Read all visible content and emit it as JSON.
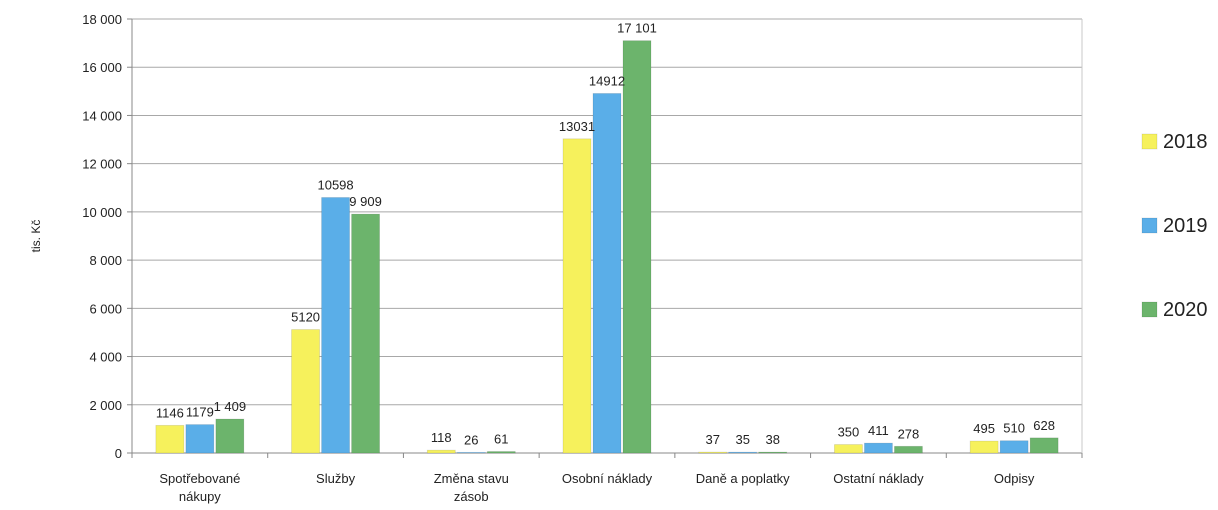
{
  "chart_data": {
    "type": "bar",
    "ylabel": "tis. Kč",
    "ylim": [
      0,
      18000
    ],
    "y_ticks": [
      0,
      2000,
      4000,
      6000,
      8000,
      10000,
      12000,
      14000,
      16000,
      18000
    ],
    "y_tick_labels": [
      "0",
      "2 000",
      "4 000",
      "6 000",
      "8 000",
      "10 000",
      "12 000",
      "14 000",
      "16 000",
      "18 000"
    ],
    "grid": true,
    "legend_position": "right",
    "categories": [
      [
        "Spotřebované",
        "nákupy"
      ],
      [
        "Služby"
      ],
      [
        "Změna stavu",
        "zásob"
      ],
      [
        "Osobní náklady"
      ],
      [
        "Daně a poplatky"
      ],
      [
        "Ostatní náklady"
      ],
      [
        "Odpisy"
      ]
    ],
    "series": [
      {
        "name": "2018",
        "color": "#f6f15c",
        "values": [
          1146,
          5120,
          118,
          13031,
          37,
          350,
          495
        ],
        "labels": [
          "1146",
          "5120",
          "118",
          "13031",
          "37",
          "350",
          "495"
        ]
      },
      {
        "name": "2019",
        "color": "#5aaee8",
        "values": [
          1179,
          10598,
          26,
          14912,
          35,
          411,
          510
        ],
        "labels": [
          "1179",
          "10598",
          "26",
          "14912",
          "35",
          "411",
          "510"
        ]
      },
      {
        "name": "2020",
        "color": "#6cb46c",
        "values": [
          1409,
          9909,
          61,
          17101,
          38,
          278,
          628
        ],
        "labels": [
          "1 409",
          "9 909",
          "61",
          "17 101",
          "38",
          "278",
          "628"
        ]
      }
    ]
  }
}
